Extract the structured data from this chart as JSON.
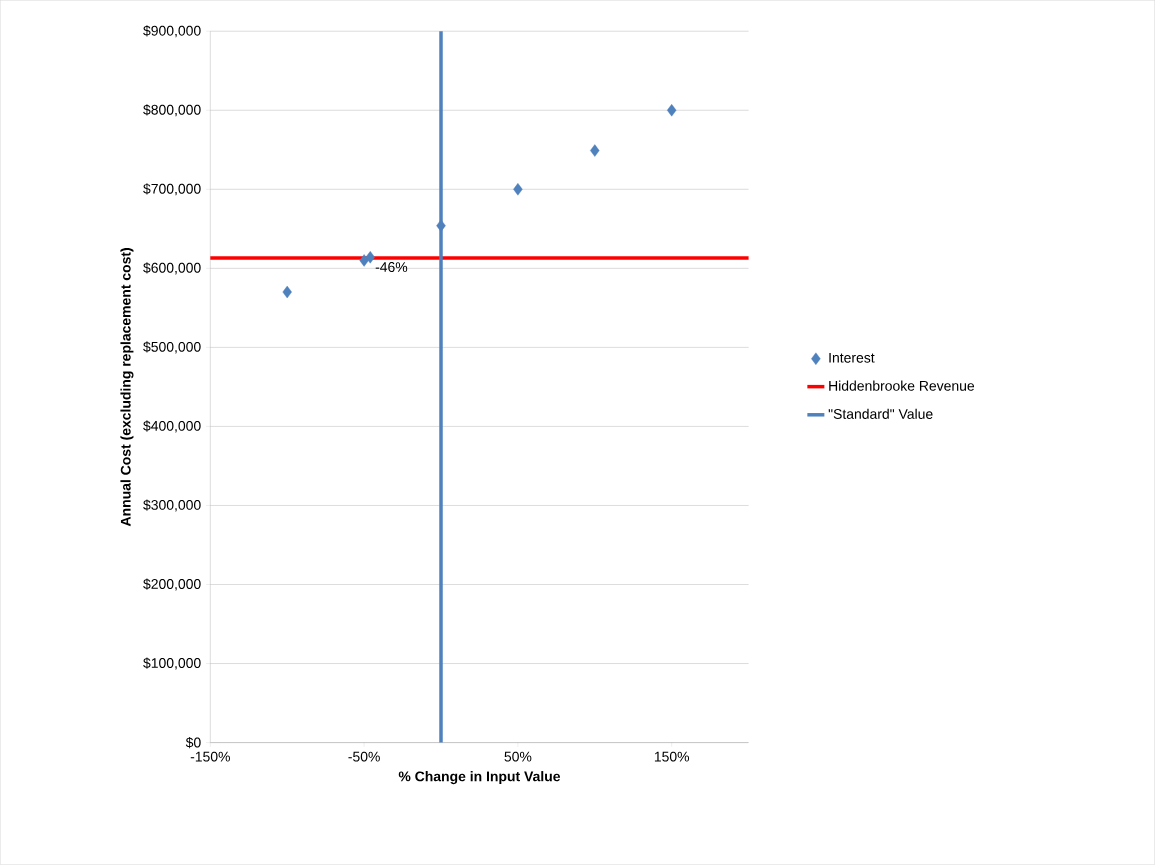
{
  "chart_data": {
    "type": "scatter",
    "xlabel": "% Change in Input Value",
    "ylabel": "Annual Cost (excluding replacement cost)",
    "xlim": [
      -150,
      200
    ],
    "ylim": [
      0,
      900000
    ],
    "xticks": [
      {
        "value": -150,
        "label": "-150%"
      },
      {
        "value": -50,
        "label": "-50%"
      },
      {
        "value": 50,
        "label": "50%"
      },
      {
        "value": 150,
        "label": "150%"
      }
    ],
    "yticks": [
      {
        "value": 0,
        "label": "$0"
      },
      {
        "value": 100000,
        "label": "$100,000"
      },
      {
        "value": 200000,
        "label": "$200,000"
      },
      {
        "value": 300000,
        "label": "$300,000"
      },
      {
        "value": 400000,
        "label": "$400,000"
      },
      {
        "value": 500000,
        "label": "$500,000"
      },
      {
        "value": 600000,
        "label": "$600,000"
      },
      {
        "value": 700000,
        "label": "$700,000"
      },
      {
        "value": 800000,
        "label": "$800,000"
      },
      {
        "value": 900000,
        "label": "$900,000"
      }
    ],
    "series": [
      {
        "name": "Interest",
        "marker": "diamond",
        "color": "#4f81bd",
        "x": [
          -100,
          -50,
          -46,
          0,
          50,
          100,
          150
        ],
        "values": [
          570000,
          610000,
          614000,
          654000,
          700000,
          749000,
          800000
        ]
      },
      {
        "name": "Hiddenbrooke Revenue",
        "type": "line",
        "marker": "none",
        "color": "#ff0000",
        "x": [
          -150,
          200
        ],
        "values": [
          613000,
          613000
        ]
      },
      {
        "name": "\"Standard\" Value",
        "type": "line",
        "marker": "none",
        "color": "#4f81bd",
        "x": [
          0,
          0
        ],
        "values": [
          0,
          900000
        ]
      }
    ],
    "annotations": [
      {
        "text": "-46%",
        "x": -46,
        "y": 614000
      }
    ],
    "grid": "y",
    "legend": "right"
  }
}
